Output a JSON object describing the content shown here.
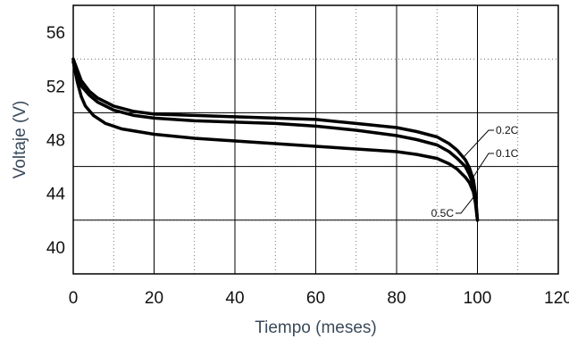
{
  "chart_data": {
    "type": "line",
    "xlabel": "Tiempo (meses)",
    "ylabel": "Voltaje (V)",
    "xlim": [
      0,
      120
    ],
    "ylim": [
      38,
      58
    ],
    "x_ticks": [
      0,
      20,
      40,
      60,
      80,
      100,
      120
    ],
    "y_ticks": [
      40,
      44,
      48,
      52,
      56
    ],
    "grid": {
      "major": true,
      "minor_dotted": true
    },
    "series": [
      {
        "name": "0.1C",
        "x": [
          0,
          1,
          2,
          4,
          6,
          10,
          15,
          20,
          30,
          40,
          50,
          60,
          70,
          80,
          85,
          90,
          93,
          95,
          97,
          98,
          99,
          99.5,
          100
        ],
        "y": [
          54.0,
          53.0,
          52.0,
          51.3,
          50.8,
          50.2,
          49.8,
          49.6,
          49.4,
          49.3,
          49.2,
          49.0,
          48.7,
          48.3,
          48.0,
          47.6,
          47.1,
          46.6,
          46.0,
          45.4,
          44.6,
          43.6,
          42.0
        ]
      },
      {
        "name": "0.2C",
        "x": [
          0,
          1,
          2,
          4,
          6,
          10,
          15,
          20,
          30,
          40,
          50,
          60,
          70,
          80,
          85,
          90,
          93,
          95,
          97,
          98,
          99,
          99.5,
          100
        ],
        "y": [
          54.0,
          53.2,
          52.4,
          51.6,
          51.1,
          50.5,
          50.1,
          49.9,
          49.8,
          49.7,
          49.6,
          49.5,
          49.2,
          48.9,
          48.6,
          48.2,
          47.7,
          47.2,
          46.5,
          45.9,
          45.0,
          44.0,
          42.0
        ]
      },
      {
        "name": "0.5C",
        "x": [
          0,
          1,
          2,
          3,
          5,
          8,
          12,
          20,
          30,
          40,
          50,
          60,
          70,
          80,
          85,
          90,
          93,
          95,
          97,
          98,
          99,
          99.5,
          100
        ],
        "y": [
          53.8,
          52.3,
          51.2,
          50.5,
          49.8,
          49.2,
          48.8,
          48.4,
          48.1,
          47.9,
          47.7,
          47.5,
          47.3,
          47.1,
          46.9,
          46.6,
          46.2,
          45.8,
          45.2,
          44.8,
          44.1,
          43.3,
          42.0
        ]
      }
    ],
    "annotations": [
      {
        "text": "0.2C",
        "series": "0.2C"
      },
      {
        "text": "0.1C",
        "series": "0.1C"
      },
      {
        "text": "0.5C",
        "series": "0.5C"
      }
    ]
  }
}
